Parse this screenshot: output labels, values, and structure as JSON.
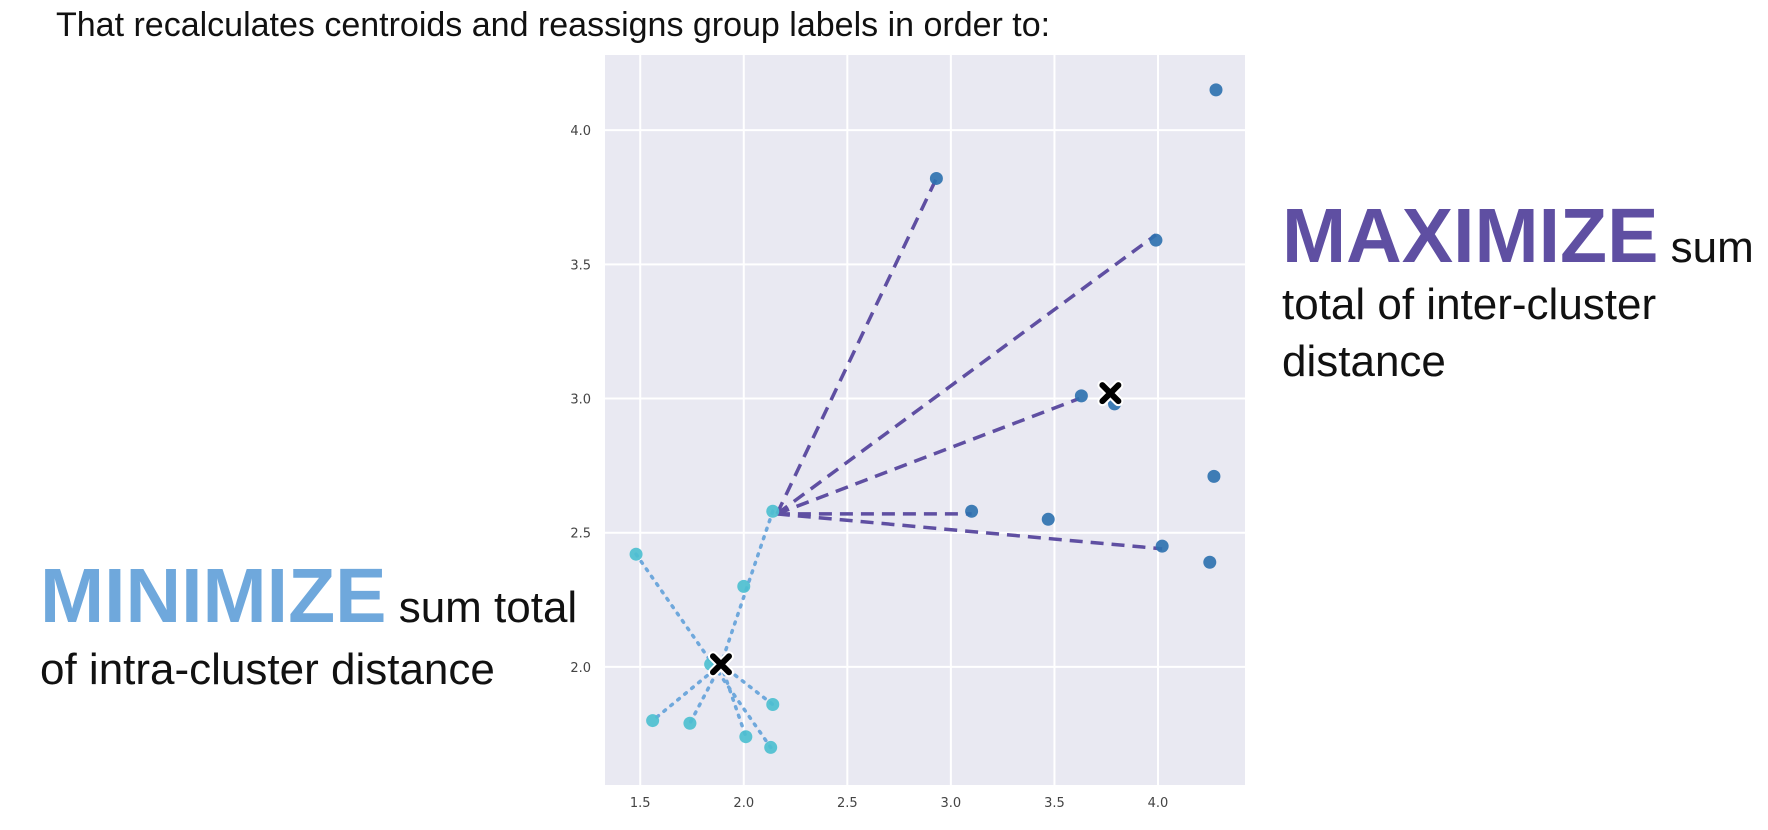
{
  "header": {
    "text": "That recalculates centroids and reassigns group labels in order to:"
  },
  "callouts": {
    "maximize": {
      "big": "MAXIMIZE",
      "rest": " sum total of inter-cluster distance"
    },
    "minimize": {
      "big": "MINIMIZE",
      "rest": " sum total of intra-cluster distance"
    }
  },
  "colors": {
    "plot_bg": "#e9e9f2",
    "grid": "#ffffff",
    "cluster_a": "#2f72b0",
    "cluster_b": "#4dbfd0",
    "inter_line": "#5f4fa2",
    "intra_line": "#6fa8dc",
    "centroid": "#000000"
  },
  "chart_data": {
    "type": "scatter",
    "xlim": [
      1.33,
      4.42
    ],
    "ylim": [
      1.56,
      4.28
    ],
    "x_ticks": [
      "1.5",
      "2.0",
      "2.5",
      "3.0",
      "3.5",
      "4.0"
    ],
    "y_ticks": [
      "2.0",
      "2.5",
      "3.0",
      "3.5",
      "4.0"
    ],
    "grid": true,
    "series": [
      {
        "cluster": "a",
        "points": [
          [
            4.28,
            4.15
          ],
          [
            2.93,
            3.82
          ],
          [
            3.99,
            3.59
          ],
          [
            3.63,
            3.01
          ],
          [
            3.79,
            2.98
          ],
          [
            4.27,
            2.71
          ],
          [
            3.1,
            2.58
          ],
          [
            3.47,
            2.55
          ],
          [
            4.02,
            2.45
          ],
          [
            4.25,
            2.39
          ]
        ]
      },
      {
        "cluster": "b",
        "points": [
          [
            2.14,
            2.58
          ],
          [
            1.48,
            2.42
          ],
          [
            2.0,
            2.3
          ],
          [
            1.84,
            2.01
          ],
          [
            1.56,
            1.8
          ],
          [
            1.74,
            1.79
          ],
          [
            2.14,
            1.86
          ],
          [
            2.01,
            1.74
          ],
          [
            2.13,
            1.7
          ]
        ]
      }
    ],
    "centroids": [
      [
        3.77,
        3.02
      ],
      [
        1.89,
        2.01
      ]
    ],
    "inter_lines": {
      "from": [
        2.16,
        2.57
      ],
      "to": [
        [
          2.93,
          3.82
        ],
        [
          3.99,
          3.61
        ],
        [
          3.62,
          3.0
        ],
        [
          3.1,
          2.57
        ],
        [
          4.02,
          2.44
        ]
      ]
    },
    "intra_lines": [
      [
        [
          1.48,
          2.42
        ],
        [
          2.13,
          1.7
        ]
      ],
      [
        [
          2.14,
          2.58
        ],
        [
          1.89,
          2.01
        ]
      ],
      [
        [
          1.89,
          2.01
        ],
        [
          1.56,
          1.8
        ]
      ],
      [
        [
          1.89,
          2.01
        ],
        [
          2.14,
          1.86
        ]
      ],
      [
        [
          1.89,
          2.01
        ],
        [
          1.74,
          1.79
        ]
      ],
      [
        [
          1.89,
          2.01
        ],
        [
          2.01,
          1.74
        ]
      ]
    ]
  }
}
